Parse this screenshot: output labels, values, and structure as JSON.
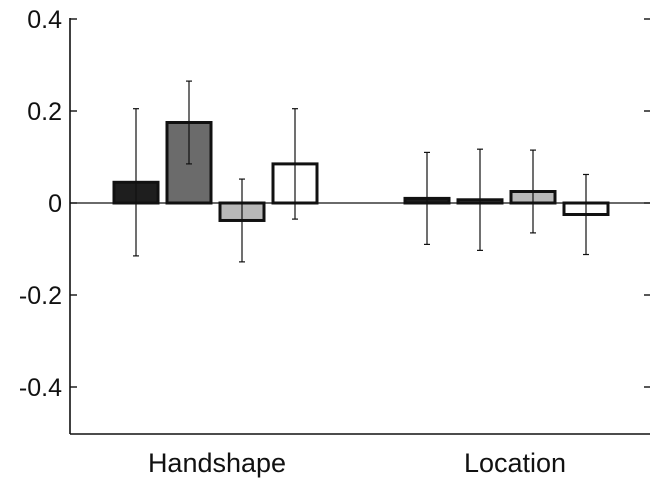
{
  "chart_data": {
    "type": "bar",
    "title": "",
    "xlabel": "",
    "ylabel": "",
    "categories": [
      "Handshape",
      "Location"
    ],
    "ylim": [
      -0.5,
      0.4
    ],
    "yticks": [
      0.4,
      0.2,
      0,
      -0.2,
      -0.4
    ],
    "ytick_labels": [
      "0.4",
      "0.2",
      "0",
      "-0.2",
      "-0.4"
    ],
    "grid": false,
    "legend": "none",
    "series": [
      {
        "values": [
          0.045,
          0.01
        ],
        "errors": [
          0.16,
          0.1
        ],
        "color": "#1e1e1e"
      },
      {
        "values": [
          0.175,
          0.007
        ],
        "errors": [
          0.09,
          0.11
        ],
        "color": "#6b6b6b"
      },
      {
        "values": [
          -0.038,
          0.025
        ],
        "errors": [
          0.09,
          0.09
        ],
        "color": "#b9b9b9"
      },
      {
        "values": [
          0.085,
          -0.025
        ],
        "errors": [
          0.12,
          0.087
        ],
        "color": "#ffffff"
      }
    ]
  }
}
